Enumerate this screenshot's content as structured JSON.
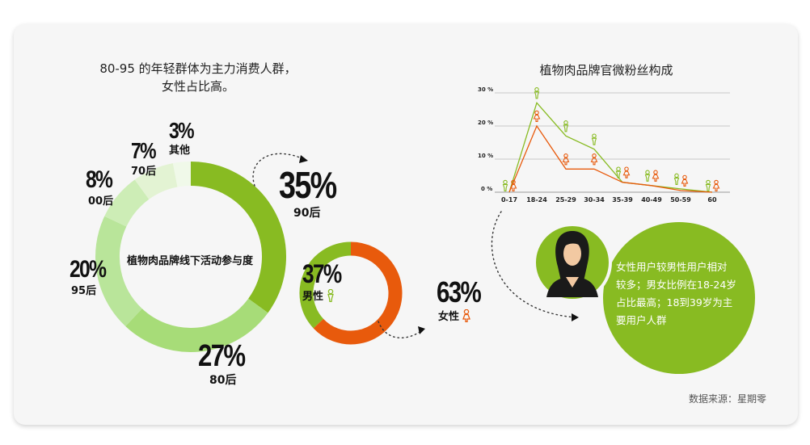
{
  "left_heading": [
    "80-95 的年轻群体为主力消费人群，",
    "女性占比高。"
  ],
  "donut_center": "植物肉品牌线下活动参与度",
  "right_heading": "植物肉品牌官微粉丝构成",
  "source": "数据来源：星期零",
  "bubble_text": [
    "女性用户较男性用户相对",
    "较多；男女比例在18-24岁",
    "占比最高；18到39岁为主",
    "要用户人群"
  ],
  "colors": {
    "c90": "#88bb22",
    "c80": "#a7dc78",
    "c95": "#b9e59a",
    "c00": "#cdedb6",
    "c70": "#e3f3d3",
    "cother": "#f0f9e9",
    "male": "#88bb22",
    "female": "#e85a0c"
  },
  "chart_data": [
    {
      "type": "pie",
      "title": "植物肉品牌线下活动参与度",
      "slices": [
        {
          "label": "90后",
          "value": 35,
          "text": "35%"
        },
        {
          "label": "80后",
          "value": 27,
          "text": "27%"
        },
        {
          "label": "95后",
          "value": 20,
          "text": "20%"
        },
        {
          "label": "00后",
          "value": 8,
          "text": "8%"
        },
        {
          "label": "70后",
          "value": 7,
          "text": "7%"
        },
        {
          "label": "其他",
          "value": 3,
          "text": "3%"
        }
      ]
    },
    {
      "type": "pie",
      "slices": [
        {
          "label": "男性",
          "value": 37,
          "text": "37%"
        },
        {
          "label": "女性",
          "value": 63,
          "text": "63%"
        }
      ]
    },
    {
      "type": "line",
      "title": "植物肉品牌官微粉丝构成",
      "categories": [
        "0-17",
        "18-24",
        "25-29",
        "30-34",
        "35-39",
        "40-49",
        "50-59",
        "60"
      ],
      "y_ticks": [
        "30 %",
        "20 %",
        "10 %",
        "0 %"
      ],
      "ylim": [
        0,
        30
      ],
      "grid": true,
      "series": [
        {
          "marker": "男性",
          "values": [
            0,
            27,
            17,
            13,
            3,
            2,
            1,
            0
          ]
        },
        {
          "marker": "女性",
          "values": [
            0,
            20,
            7,
            7,
            3,
            2,
            0.5,
            0
          ]
        }
      ]
    }
  ]
}
